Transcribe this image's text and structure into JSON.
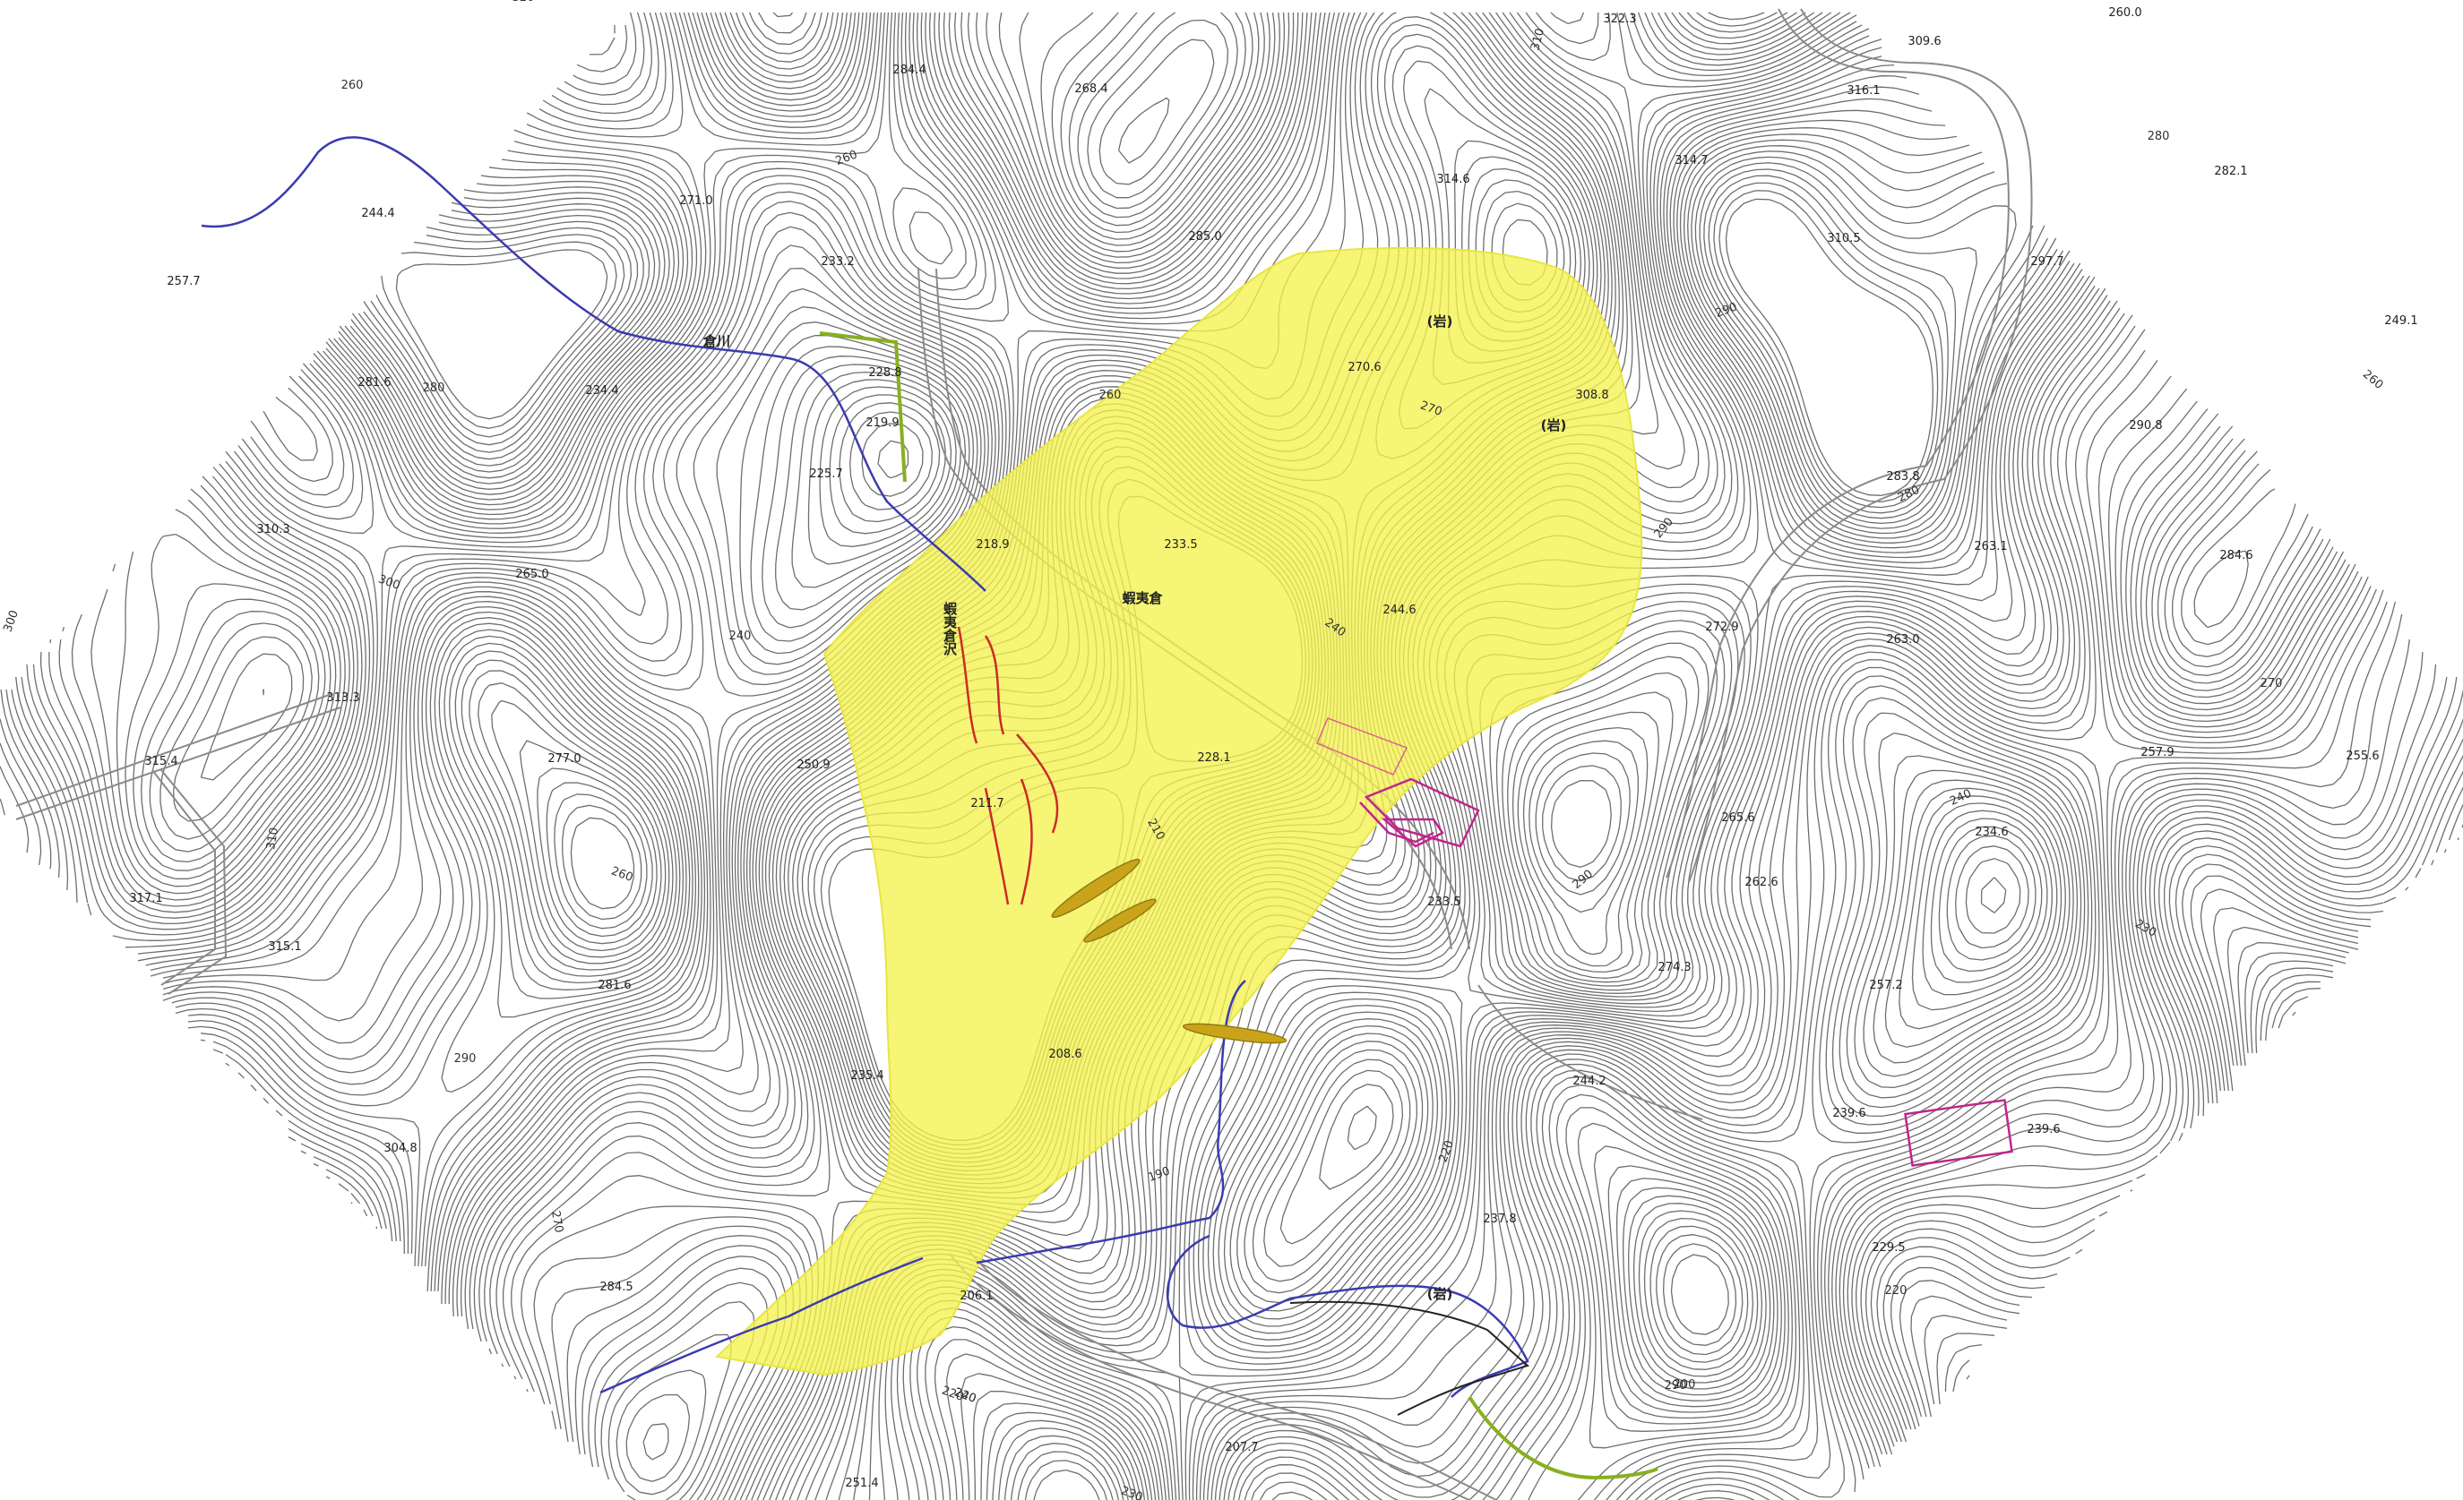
{
  "map": {
    "colors": {
      "background": "#ffffff",
      "contour": "#6e6e6e",
      "contour_index": "#4a4a4a",
      "hazard_area": "#f4f250",
      "river": "#3b3bb0",
      "road_edge": "#8a8a8a",
      "structure": "#c0258c",
      "red_line": "#cc2a2a",
      "green_path": "#88b020",
      "dam": "#b39a10"
    },
    "place_labels": [
      {
        "text": "蝦夷倉"
      },
      {
        "text": "倉川"
      },
      {
        "text": "蝦夷倉沢"
      },
      {
        "text": "(岩)"
      },
      {
        "text": "(岩)"
      },
      {
        "text": "(岩)"
      }
    ],
    "elevation_points": [
      "322.3",
      "309.6",
      "316.1",
      "284.4",
      "268.4",
      "260.0",
      "314.7",
      "314.6",
      "310.5",
      "282.1",
      "297.7",
      "244.4",
      "271.0",
      "233.2",
      "285.0",
      "270.6",
      "308.8",
      "249.1",
      "257.7",
      "228.8",
      "219.9",
      "225.7",
      "281.6",
      "234.4",
      "310.3",
      "265.0",
      "218.9",
      "233.5",
      "244.6",
      "283.8",
      "290.8",
      "263.1",
      "284.6",
      "313.3",
      "315.4",
      "250.9",
      "277.0",
      "228.1",
      "272.9",
      "263.0",
      "257.9",
      "255.6",
      "211.7",
      "265.6",
      "234.6",
      "317.1",
      "315.1",
      "233.5",
      "262.6",
      "281.6",
      "274.3",
      "257.2",
      "235.4",
      "208.6",
      "244.2",
      "239.6",
      "239.6",
      "304.8",
      "237.8",
      "229.5",
      "284.5",
      "206.1",
      "207.7",
      "251.4"
    ],
    "contour_labels": [
      "260",
      "260",
      "280",
      "300",
      "320",
      "310",
      "260",
      "270",
      "280",
      "290",
      "260",
      "240",
      "300",
      "290",
      "280",
      "270",
      "240",
      "240",
      "230",
      "210",
      "310",
      "260",
      "290",
      "220",
      "220",
      "290",
      "240",
      "190",
      "270",
      "220",
      "200",
      "220",
      "230",
      "290"
    ]
  }
}
